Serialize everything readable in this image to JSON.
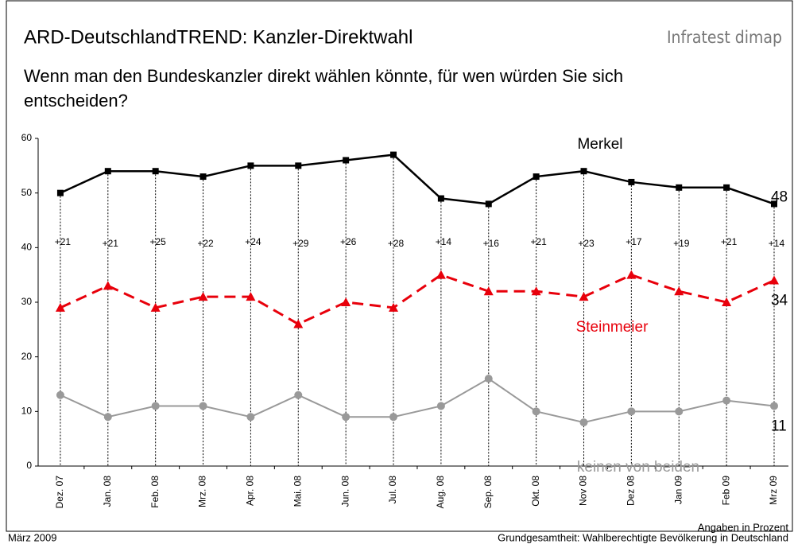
{
  "chart_data": {
    "type": "line",
    "title": "ARD-DeutschlandTREND: Kanzler-Direktwahl",
    "source": "Infratest dimap",
    "subtitle_lines": [
      "Wenn man den Bundeskanzler direkt wählen könnte, für wen würden Sie sich",
      "entscheiden?"
    ],
    "footer_left": "März 2009",
    "footer_right": [
      "Angaben in Prozent",
      "Grundgesamtheit: Wahlberechtigte Bevölkerung in Deutschland"
    ],
    "categories": [
      "Dez. 07",
      "Jan. 08",
      "Feb. 08",
      "Mrz. 08",
      "Apr. 08",
      "Mai. 08",
      "Jun. 08",
      "Jul. 08",
      "Aug. 08",
      "Sep. 08",
      "Okt. 08",
      "Nov 08",
      "Dez 08",
      "Jan 09",
      "Feb 09",
      "Mrz 09"
    ],
    "series": [
      {
        "name": "Merkel",
        "color": "#000000",
        "marker": "square",
        "dashed": false,
        "values": [
          50,
          54,
          54,
          53,
          55,
          55,
          56,
          57,
          49,
          48,
          53,
          54,
          52,
          51,
          51,
          48
        ]
      },
      {
        "name": "Steinmeier",
        "color": "#e8000b",
        "marker": "triangle",
        "dashed": true,
        "values": [
          29,
          33,
          29,
          31,
          31,
          26,
          30,
          29,
          35,
          32,
          32,
          31,
          35,
          32,
          30,
          34
        ]
      },
      {
        "name": "keinen von beiden",
        "color": "#999999",
        "marker": "circle",
        "dashed": false,
        "values": [
          13,
          9,
          11,
          11,
          9,
          13,
          9,
          9,
          11,
          16,
          10,
          8,
          10,
          10,
          12,
          11
        ]
      }
    ],
    "difference_labels": [
      "+21",
      "+21",
      "+25",
      "+22",
      "+24",
      "+29",
      "+26",
      "+28",
      "+14",
      "+16",
      "+21",
      "+23",
      "+17",
      "+19",
      "+21",
      "+14"
    ],
    "ylim": [
      0,
      60
    ],
    "yticks": [
      0,
      10,
      20,
      30,
      40,
      50,
      60
    ],
    "grid": false
  }
}
